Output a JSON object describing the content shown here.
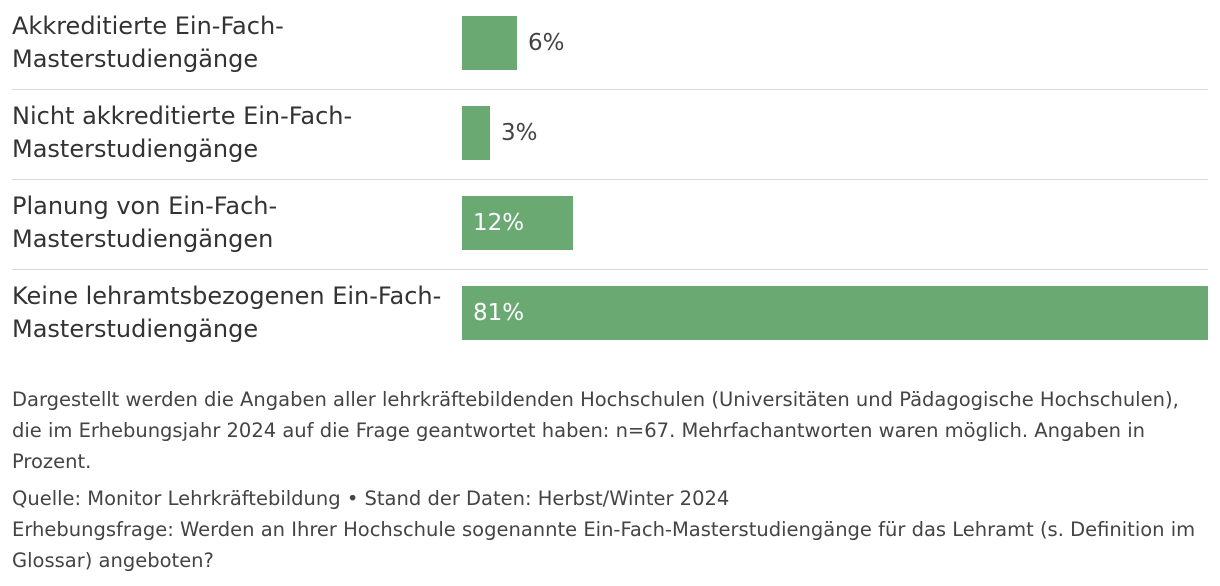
{
  "chart_data": {
    "type": "bar",
    "orientation": "horizontal",
    "categories": [
      "Akkreditierte Ein-Fach-\nMasterstudiengänge",
      "Nicht akkreditierte Ein-Fach-\nMasterstudiengänge",
      "Planung von Ein-Fach-\nMasterstudiengängen",
      "Keine lehramtsbezogenen Ein-Fach-\nMasterstudiengänge"
    ],
    "values": [
      6,
      3,
      12,
      81
    ],
    "value_labels": [
      "6%",
      "3%",
      "12%",
      "81%"
    ],
    "unit": "%",
    "xlim": [
      0,
      81
    ],
    "grid": false,
    "bar_color": "#6aaa72"
  },
  "footer": {
    "note": "Dargestellt werden die Angaben aller lehrkräftebildenden Hochschulen (Universitäten und Pädagogische Hochschulen), die im Erhebungsjahr 2024 auf die Frage geantwortet haben: n=67. Mehrfachantworten waren möglich. Angaben in Prozent.",
    "source": "Quelle: Monitor Lehrkräftebildung • Stand der Daten: Herbst/Winter 2024",
    "question": "Erhebungsfrage: Werden an Ihrer Hochschule sogenannte Ein-Fach-Masterstudiengänge für das Lehramt (s. Definition im Glossar) angeboten?"
  }
}
